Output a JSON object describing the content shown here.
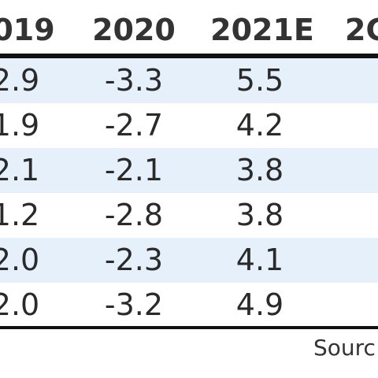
{
  "chart_data": {
    "type": "table",
    "columns": [
      "019",
      "2020",
      "2021E",
      "2C"
    ],
    "rows": [
      [
        "2.9",
        "-3.3",
        "5.5",
        ""
      ],
      [
        "1.9",
        "-2.7",
        "4.2",
        ""
      ],
      [
        "2.1",
        "-2.1",
        "3.8",
        ""
      ],
      [
        "1.2",
        "-2.8",
        "3.8",
        ""
      ],
      [
        "2.0",
        "-2.3",
        "4.1",
        ""
      ],
      [
        "2.0",
        "-3.2",
        "4.9",
        ""
      ]
    ],
    "row_shading": [
      "#e6f0fb",
      "#ffffff",
      "#e6f0fb",
      "#ffffff",
      "#e6f0fb",
      "#ffffff"
    ],
    "source_text": "Sourc"
  }
}
